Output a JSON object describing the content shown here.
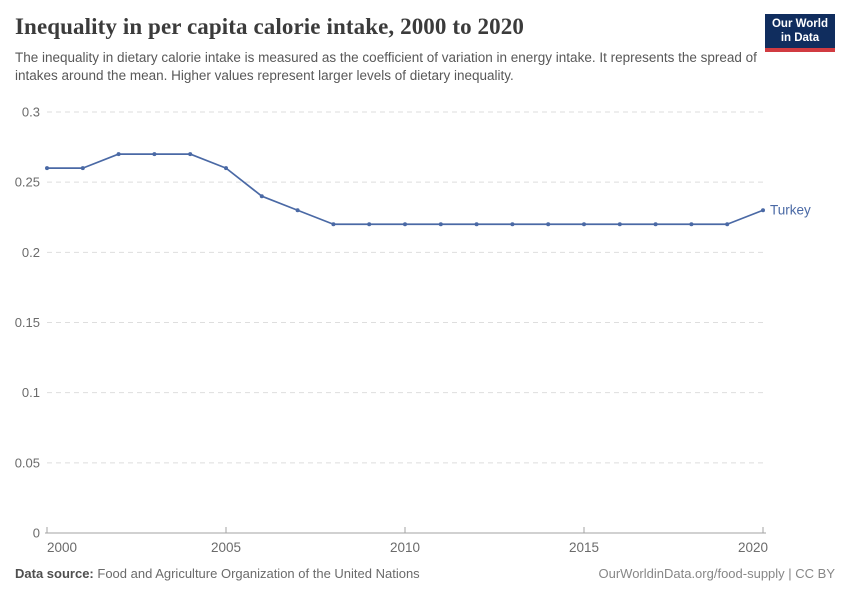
{
  "header": {
    "title": "Inequality in per capita calorie intake, 2000 to 2020",
    "subtitle": "The inequality in dietary calorie intake is measured as the coefficient of variation in energy intake. It represents the spread of intakes around the mean. Higher values represent larger levels of dietary inequality.",
    "logo": {
      "line1": "Our World",
      "line2": "in Data",
      "bg_color": "#102d5e",
      "accent_color": "#d13b41"
    }
  },
  "chart_data": {
    "type": "line",
    "title": "Inequality in per capita calorie intake, 2000 to 2020",
    "x": [
      2000,
      2001,
      2002,
      2003,
      2004,
      2005,
      2006,
      2007,
      2008,
      2009,
      2010,
      2011,
      2012,
      2013,
      2014,
      2015,
      2016,
      2017,
      2018,
      2019,
      2020
    ],
    "series": [
      {
        "name": "Turkey",
        "color": "#4a69a5",
        "values": [
          0.26,
          0.26,
          0.27,
          0.27,
          0.27,
          0.26,
          0.24,
          0.23,
          0.22,
          0.22,
          0.22,
          0.22,
          0.22,
          0.22,
          0.22,
          0.22,
          0.22,
          0.22,
          0.22,
          0.22,
          0.23
        ]
      }
    ],
    "xlabel": "",
    "ylabel": "",
    "xlim": [
      2000,
      2020
    ],
    "ylim": [
      0,
      0.3
    ],
    "yticks": [
      0,
      0.05,
      0.1,
      0.15,
      0.2,
      0.25,
      0.3
    ],
    "ytick_labels": [
      "0",
      "0.05",
      "0.1",
      "0.15",
      "0.2",
      "0.25",
      "0.3"
    ],
    "xticks": [
      2000,
      2005,
      2010,
      2015,
      2020
    ],
    "xtick_labels": [
      "2000",
      "2005",
      "2010",
      "2015",
      "2020"
    ],
    "grid": "horizontal-dashed",
    "legend_position": "end-of-line-label"
  },
  "footer": {
    "data_source_label": "Data source:",
    "data_source_value": "Food and Agriculture Organization of the United Nations",
    "attribution": "OurWorldinData.org/food-supply | CC BY"
  },
  "colors": {
    "line": "#4a69a5",
    "grid": "#dedede",
    "axis": "#a3a3a3",
    "tick_label": "#6b6b6b",
    "title": "#3b3b3b",
    "subtitle": "#585858"
  }
}
